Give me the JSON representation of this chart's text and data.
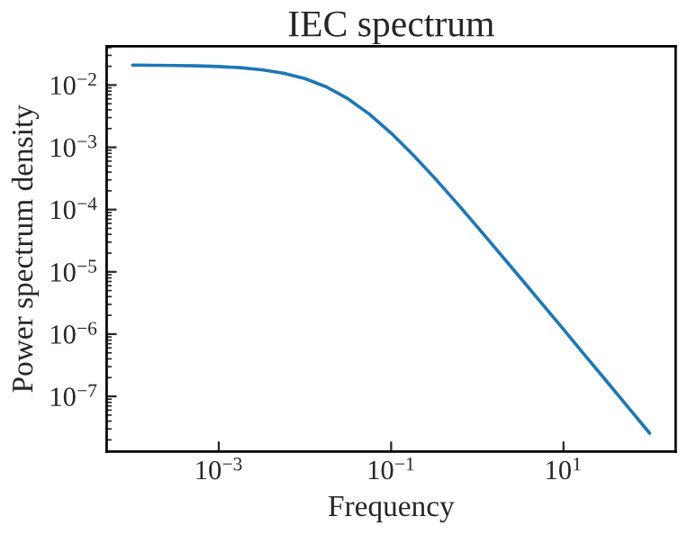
{
  "chart_data": {
    "type": "line",
    "title": "IEC spectrum",
    "xlabel": "Frequency",
    "ylabel": "Power spectrum density",
    "x": [
      0.0001,
      0.0001778,
      0.0003162,
      0.0005623,
      0.001,
      0.001778,
      0.003162,
      0.005623,
      0.01,
      0.01778,
      0.03162,
      0.05623,
      0.1,
      0.1778,
      0.3162,
      0.5623,
      1,
      1.778,
      3.162,
      5.623,
      10,
      17.78,
      31.62,
      56.23,
      100
    ],
    "series": [
      {
        "color": "#1f77b4",
        "values": [
          0.0209,
          0.0208,
          0.0206,
          0.0203,
          0.0198,
          0.019,
          0.0176,
          0.0155,
          0.0127,
          0.00932,
          0.00602,
          0.00339,
          0.00169,
          0.000769,
          0.000327,
          0.000133,
          5.28e-05,
          2.06e-05,
          8e-06,
          3.09e-06,
          1.19e-06,
          4.55e-07,
          1.75e-07,
          6.68e-08,
          2.56e-08
        ]
      }
    ],
    "log": "xy",
    "xlim": [
      5e-05,
      200
    ],
    "ylim": [
      1.3e-08,
      0.042
    ],
    "xticks": [
      {
        "value": 0.001,
        "label": "10$^{−3}$"
      },
      {
        "value": 0.1,
        "label": "10$^{−1}$"
      },
      {
        "value": 10,
        "label": "10$^{1}$"
      }
    ],
    "yticks": [
      {
        "value": 1e-07,
        "label": "10$^{−7}$"
      },
      {
        "value": 1e-06,
        "label": "10$^{−6}$"
      },
      {
        "value": 1e-05,
        "label": "10$^{−5}$"
      },
      {
        "value": 0.0001,
        "label": "10$^{−4}$"
      },
      {
        "value": 0.001,
        "label": "10$^{−3}$"
      },
      {
        "value": 0.01,
        "label": "10$^{−2}$"
      }
    ],
    "grid": false,
    "legend": false,
    "marker": "none",
    "line_style": "solid"
  }
}
